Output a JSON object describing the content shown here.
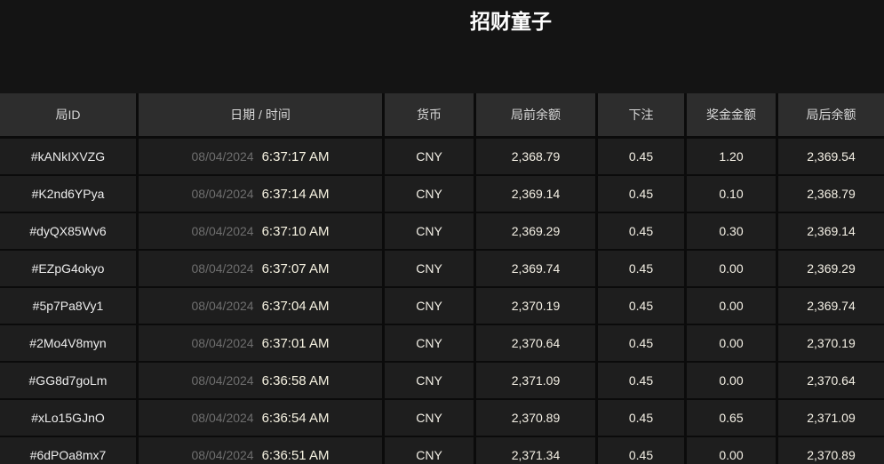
{
  "title": "招财童子",
  "colors": {
    "page_background": "#141414",
    "header_cell_background": "#2d2d2d",
    "row_cell_background": "#1e1e1e",
    "separator": "#0b0b0b",
    "title_text": "#ffffff",
    "header_text": "#d8d8d8",
    "date_muted_text": "#6e6e6e",
    "value_text": "#f4f0e5"
  },
  "table": {
    "columns": [
      "局ID",
      "日期 / 时间",
      "货币",
      "局前余额",
      "下注",
      "奖金金额",
      "局后余额"
    ],
    "rows": [
      {
        "id": "#kANkIXVZG",
        "date": "08/04/2024",
        "time": "6:37:17 AM",
        "currency": "CNY",
        "balance_before": "2,368.79",
        "bet": "0.45",
        "prize": "1.20",
        "balance_after": "2,369.54"
      },
      {
        "id": "#K2nd6YPya",
        "date": "08/04/2024",
        "time": "6:37:14 AM",
        "currency": "CNY",
        "balance_before": "2,369.14",
        "bet": "0.45",
        "prize": "0.10",
        "balance_after": "2,368.79"
      },
      {
        "id": "#dyQX85Wv6",
        "date": "08/04/2024",
        "time": "6:37:10 AM",
        "currency": "CNY",
        "balance_before": "2,369.29",
        "bet": "0.45",
        "prize": "0.30",
        "balance_after": "2,369.14"
      },
      {
        "id": "#EZpG4okyo",
        "date": "08/04/2024",
        "time": "6:37:07 AM",
        "currency": "CNY",
        "balance_before": "2,369.74",
        "bet": "0.45",
        "prize": "0.00",
        "balance_after": "2,369.29"
      },
      {
        "id": "#5p7Pa8Vy1",
        "date": "08/04/2024",
        "time": "6:37:04 AM",
        "currency": "CNY",
        "balance_before": "2,370.19",
        "bet": "0.45",
        "prize": "0.00",
        "balance_after": "2,369.74"
      },
      {
        "id": "#2Mo4V8myn",
        "date": "08/04/2024",
        "time": "6:37:01 AM",
        "currency": "CNY",
        "balance_before": "2,370.64",
        "bet": "0.45",
        "prize": "0.00",
        "balance_after": "2,370.19"
      },
      {
        "id": "#GG8d7goLm",
        "date": "08/04/2024",
        "time": "6:36:58 AM",
        "currency": "CNY",
        "balance_before": "2,371.09",
        "bet": "0.45",
        "prize": "0.00",
        "balance_after": "2,370.64"
      },
      {
        "id": "#xLo15GJnO",
        "date": "08/04/2024",
        "time": "6:36:54 AM",
        "currency": "CNY",
        "balance_before": "2,370.89",
        "bet": "0.45",
        "prize": "0.65",
        "balance_after": "2,371.09"
      },
      {
        "id": "#6dPOa8mx7",
        "date": "08/04/2024",
        "time": "6:36:51 AM",
        "currency": "CNY",
        "balance_before": "2,371.34",
        "bet": "0.45",
        "prize": "0.00",
        "balance_after": "2,370.89"
      }
    ]
  }
}
